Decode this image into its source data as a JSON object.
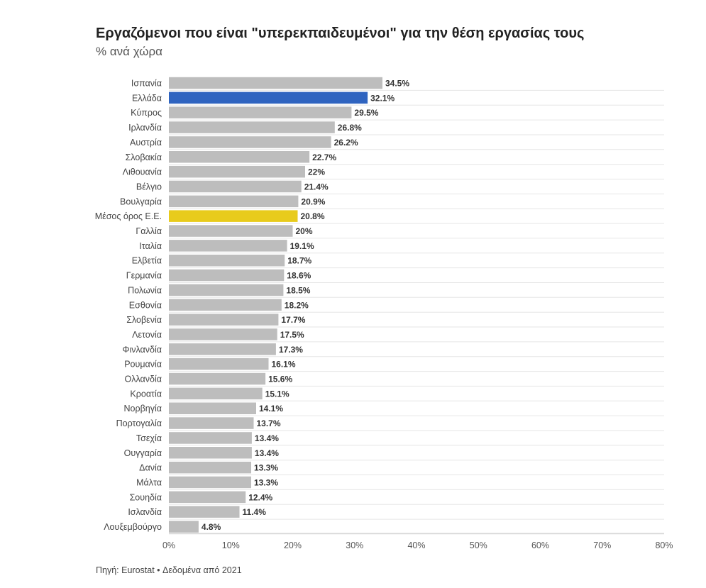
{
  "header": {
    "title": "Εργαζόμενοι που είναι \"υπερεκπαιδευμένοι\" για την θέση εργασίας τους",
    "subtitle": "% ανά χώρα"
  },
  "footer": {
    "source": "Πηγή: Eurostat • Δεδομένα από 2021"
  },
  "colors": {
    "default": "#bdbdbd",
    "greece": "#2f64c0",
    "eu_average": "#e8cb1c",
    "grid": "#e6e6e6"
  },
  "chart_data": {
    "type": "bar",
    "orientation": "horizontal",
    "title": "Εργαζόμενοι που είναι \"υπερεκπαιδευμένοι\" για την θέση εργασίας τους",
    "subtitle": "% ανά χώρα",
    "categories": [
      "Ισπανία",
      "Ελλάδα",
      "Κύπρος",
      "Ιρλανδία",
      "Αυστρία",
      "Σλοβακία",
      "Λιθουανία",
      "Βέλγιο",
      "Βουλγαρία",
      "Μέσος όρος Ε.Ε.",
      "Γαλλία",
      "Ιταλία",
      "Ελβετία",
      "Γερμανία",
      "Πολωνία",
      "Εσθονία",
      "Σλοβενία",
      "Λετονία",
      "Φινλανδία",
      "Ρουμανία",
      "Ολλανδία",
      "Κροατία",
      "Νορβηγία",
      "Πορτογαλία",
      "Τσεχία",
      "Ουγγαρία",
      "Δανία",
      "Μάλτα",
      "Σουηδία",
      "Ισλανδία",
      "Λουξεμβούργο"
    ],
    "values": [
      34.5,
      32.1,
      29.5,
      26.8,
      26.2,
      22.7,
      22,
      21.4,
      20.9,
      20.8,
      20,
      19.1,
      18.7,
      18.6,
      18.5,
      18.2,
      17.7,
      17.5,
      17.3,
      16.1,
      15.6,
      15.1,
      14.1,
      13.7,
      13.4,
      13.4,
      13.3,
      13.3,
      12.4,
      11.4,
      4.8
    ],
    "value_labels": [
      "34.5%",
      "32.1%",
      "29.5%",
      "26.8%",
      "26.2%",
      "22.7%",
      "22%",
      "21.4%",
      "20.9%",
      "20.8%",
      "20%",
      "19.1%",
      "18.7%",
      "18.6%",
      "18.5%",
      "18.2%",
      "17.7%",
      "17.5%",
      "17.3%",
      "16.1%",
      "15.6%",
      "15.1%",
      "14.1%",
      "13.7%",
      "13.4%",
      "13.4%",
      "13.3%",
      "13.3%",
      "12.4%",
      "11.4%",
      "4.8%"
    ],
    "highlights": {
      "Ελλάδα": "greece",
      "Μέσος όρος Ε.Ε.": "eu_average"
    },
    "xlim": [
      0,
      80
    ],
    "xticks": [
      0,
      10,
      20,
      30,
      40,
      50,
      60,
      70,
      80
    ],
    "xtick_labels": [
      "0%",
      "10%",
      "20%",
      "30%",
      "40%",
      "50%",
      "60%",
      "70%",
      "80%"
    ],
    "grid": true,
    "legend": "none"
  }
}
